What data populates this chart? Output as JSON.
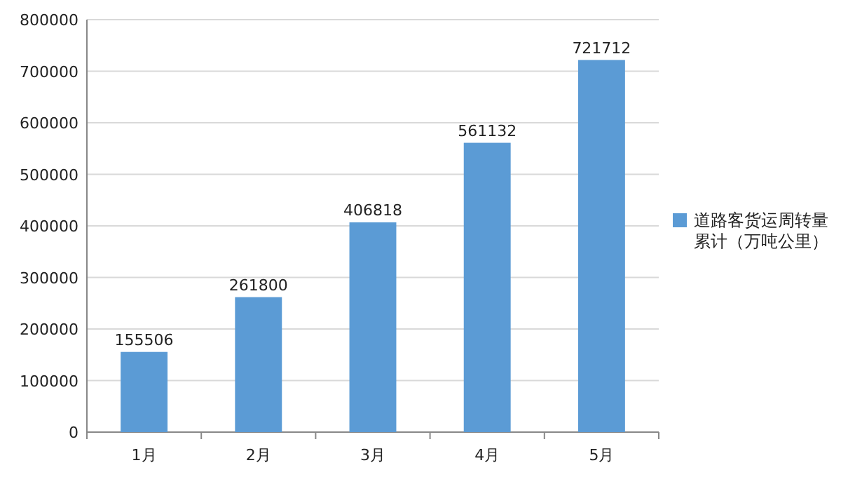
{
  "chart_data": {
    "type": "bar",
    "categories": [
      "1月",
      "2月",
      "3月",
      "4月",
      "5月"
    ],
    "series": [
      {
        "name": "道路客货运周转量累计（万吨公里）",
        "color": "#5b9bd5",
        "values": [
          155506,
          261800,
          406818,
          561132,
          721712
        ]
      }
    ],
    "ylim": [
      0,
      800000
    ],
    "yticks": [
      0,
      100000,
      200000,
      300000,
      400000,
      500000,
      600000,
      700000,
      800000
    ],
    "grid": "y",
    "legend": "right",
    "data_labels": true
  }
}
